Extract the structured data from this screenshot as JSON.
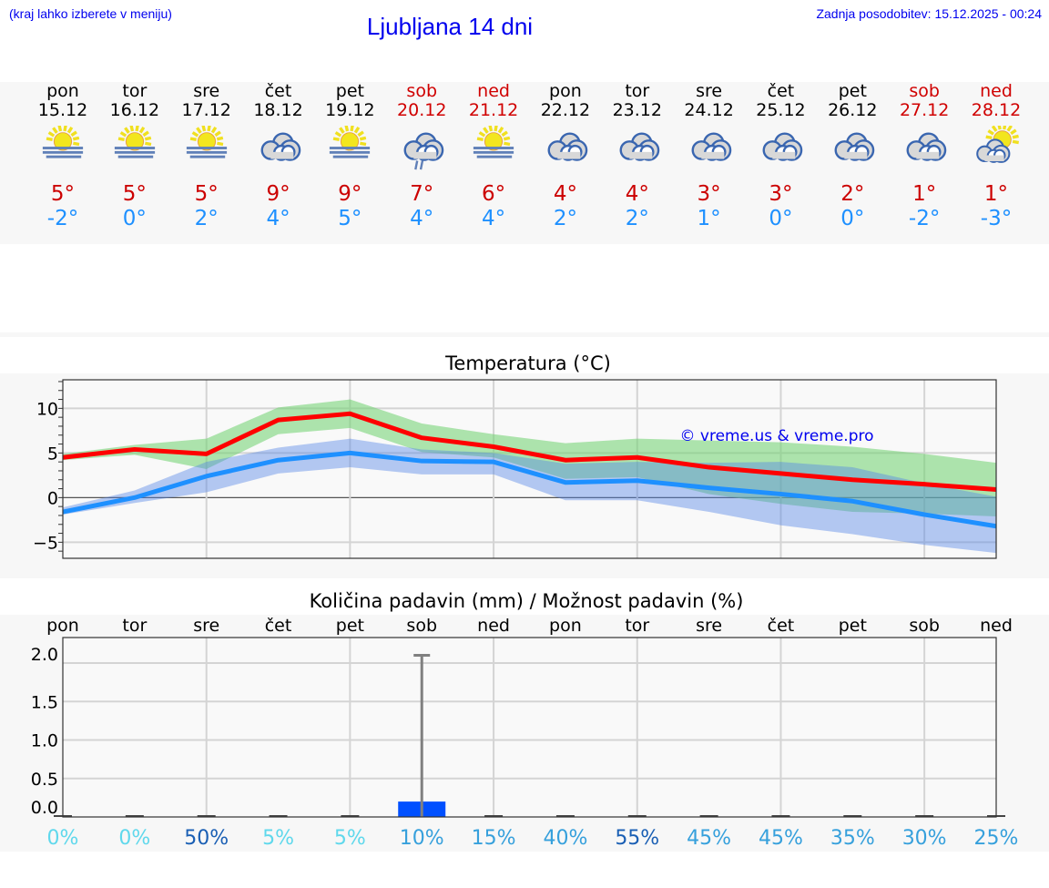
{
  "header": {
    "hint": "(kraj lahko izberete v meniju)",
    "title": "Ljubljana 14 dni",
    "updated": "Zadnja posodobitev: 15.12.2025 - 00:24"
  },
  "colors": {
    "max": "#ff0000",
    "min": "#1e90ff",
    "max_band": "#a8e8a8",
    "min_band": "#a8c4f0",
    "bar": "#0050ff",
    "weekend": "#d00000"
  },
  "days": [
    {
      "name": "pon",
      "date": "15.12",
      "weekend": false,
      "icon": "sun-fog",
      "max": "5°",
      "min": "-2°",
      "chance": "0%"
    },
    {
      "name": "tor",
      "date": "16.12",
      "weekend": false,
      "icon": "sun-fog",
      "max": "5°",
      "min": "0°",
      "chance": "0%"
    },
    {
      "name": "sre",
      "date": "17.12",
      "weekend": false,
      "icon": "sun-fog",
      "max": "5°",
      "min": "2°",
      "chance": "50%"
    },
    {
      "name": "čet",
      "date": "18.12",
      "weekend": false,
      "icon": "cloudy",
      "max": "9°",
      "min": "4°",
      "chance": "5%"
    },
    {
      "name": "pet",
      "date": "19.12",
      "weekend": false,
      "icon": "sun-fog",
      "max": "9°",
      "min": "5°",
      "chance": "5%"
    },
    {
      "name": "sob",
      "date": "20.12",
      "weekend": true,
      "icon": "cloudy-rain",
      "max": "7°",
      "min": "4°",
      "chance": "10%"
    },
    {
      "name": "ned",
      "date": "21.12",
      "weekend": true,
      "icon": "sun-fog",
      "max": "6°",
      "min": "4°",
      "chance": "15%"
    },
    {
      "name": "pon",
      "date": "22.12",
      "weekend": false,
      "icon": "cloudy",
      "max": "4°",
      "min": "2°",
      "chance": "40%"
    },
    {
      "name": "tor",
      "date": "23.12",
      "weekend": false,
      "icon": "cloudy",
      "max": "4°",
      "min": "2°",
      "chance": "55%"
    },
    {
      "name": "sre",
      "date": "24.12",
      "weekend": false,
      "icon": "cloudy",
      "max": "3°",
      "min": "1°",
      "chance": "45%"
    },
    {
      "name": "čet",
      "date": "25.12",
      "weekend": false,
      "icon": "cloudy",
      "max": "3°",
      "min": "0°",
      "chance": "45%"
    },
    {
      "name": "pet",
      "date": "26.12",
      "weekend": false,
      "icon": "cloudy",
      "max": "2°",
      "min": "0°",
      "chance": "35%"
    },
    {
      "name": "sob",
      "date": "27.12",
      "weekend": true,
      "icon": "cloudy",
      "max": "1°",
      "min": "-2°",
      "chance": "30%"
    },
    {
      "name": "ned",
      "date": "28.12",
      "weekend": true,
      "icon": "partly-cloudy",
      "max": "1°",
      "min": "-3°",
      "chance": "25%"
    }
  ],
  "chart_data": [
    {
      "type": "line",
      "title": "Temperatura (°C)",
      "watermark": "© vreme.us & vreme.pro",
      "ylim": [
        -6.8,
        13.2
      ],
      "yticks": [
        10,
        5,
        0,
        -5
      ],
      "ytick_labels": [
        "10",
        "5",
        "0",
        "−5"
      ],
      "grid": true,
      "series": [
        {
          "key": "max",
          "values": [
            4.5,
            5.4,
            4.9,
            8.7,
            9.4,
            6.7,
            5.7,
            4.2,
            4.5,
            3.4,
            2.7,
            2.0,
            1.5,
            0.9
          ],
          "band_upper": [
            4.9,
            5.9,
            6.6,
            10.1,
            11.0,
            8.3,
            7.1,
            6.1,
            6.6,
            6.4,
            6.2,
            5.7,
            4.9,
            3.9
          ],
          "band_lower": [
            4.2,
            4.8,
            3.2,
            7.1,
            7.8,
            5.1,
            4.5,
            2.1,
            2.3,
            0.4,
            -0.7,
            -1.6,
            -1.8,
            -2.1
          ]
        },
        {
          "key": "min",
          "values": [
            -1.6,
            0.0,
            2.4,
            4.2,
            5.0,
            4.1,
            4.0,
            1.7,
            1.9,
            1.1,
            0.4,
            -0.4,
            -1.9,
            -3.2
          ],
          "band_upper": [
            -1.1,
            0.8,
            4.0,
            5.6,
            6.6,
            5.4,
            5.0,
            3.8,
            4.0,
            3.9,
            4.0,
            3.4,
            1.6,
            0.1
          ],
          "band_lower": [
            -1.9,
            -0.6,
            0.6,
            2.7,
            3.4,
            2.6,
            2.6,
            -0.3,
            -0.3,
            -1.6,
            -3.1,
            -4.1,
            -5.3,
            -6.2
          ]
        }
      ]
    },
    {
      "type": "bar",
      "title": "Količina padavin (mm) / Možnost padavin (%)",
      "ylim": [
        0,
        2.3
      ],
      "yticks": [
        2.0,
        1.5,
        1.0,
        0.5,
        0.0
      ],
      "ytick_labels": [
        "2.0",
        "1.5",
        "1.0",
        "0.5",
        "0.0"
      ],
      "values": [
        0,
        0,
        0,
        0,
        0,
        0.2,
        0,
        0,
        0,
        0,
        0,
        0,
        0,
        0
      ],
      "error_upper": [
        null,
        null,
        null,
        null,
        null,
        2.1,
        null,
        null,
        null,
        null,
        null,
        null,
        null,
        null
      ],
      "grid": true
    }
  ]
}
